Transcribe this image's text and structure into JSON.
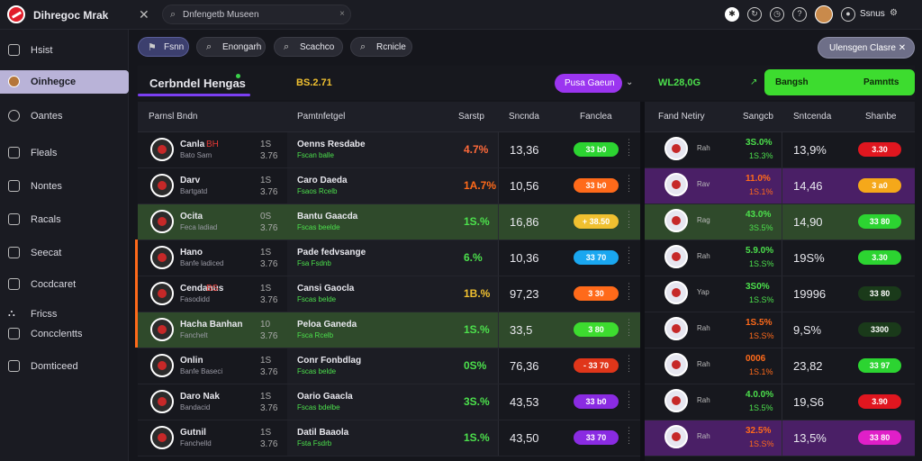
{
  "app": {
    "title": "Dihregoc Mrak"
  },
  "search": {
    "text": "Dnfengetb Museen",
    "clear": "×"
  },
  "user": {
    "name": "Ssnus"
  },
  "sidebar": {
    "items": [
      {
        "label": "Hsist"
      },
      {
        "label": "Oinhegce"
      },
      {
        "label": "Oantes"
      },
      {
        "label": "Fleals"
      },
      {
        "label": "Nontes"
      },
      {
        "label": "Racals"
      },
      {
        "label": "Seecat"
      },
      {
        "label": "Cocdcaret"
      },
      {
        "label": "Fricss"
      },
      {
        "label": "Concclentts"
      },
      {
        "label": "Domticeed"
      }
    ]
  },
  "chips": [
    {
      "label": "Fsnn"
    },
    {
      "label": "Enongarh"
    },
    {
      "label": "Scachco"
    },
    {
      "label": "Rcnicle"
    }
  ],
  "chip_right": {
    "label": "Ulensgen Clasre"
  },
  "header": {
    "title": "Cerbndel Hengas",
    "subtitle": "BS.2.71",
    "button": "Pusa Gaeun",
    "value": "WL28,0G",
    "cta_left": "Bangsh",
    "cta_right": "Pamntts"
  },
  "left_columns": [
    "Parnsl Bndn",
    "Pamtnfetgel",
    "Sarstp",
    "Sncnda",
    "Fanclea"
  ],
  "right_columns": [
    "Fand Netiry",
    "Sangcb",
    "Sntcenda",
    "Shanbe"
  ],
  "colors": {
    "accent": "#9b35f0",
    "green": "#3ddc2f",
    "orange": "#ff6a1a"
  },
  "rows": [
    {
      "team": "Canla",
      "tag": "BH",
      "sub": "Bato Sam",
      "n1": "1S",
      "n2": "3.76",
      "p1": "Oenns Resdabe",
      "p2": "Fscan balle",
      "pct": "4.7%",
      "pct_color": "#ff6a3a",
      "val": "13,36",
      "pill": "33 b0",
      "pill_color": "#2cd431",
      "r_tag": "Rah",
      "r_pct": "3S.0%",
      "r_pct2": "1S.3%",
      "r_pct_color": "#4ce04c",
      "r_val": "13,9%",
      "r_pill": "3.30",
      "r_pill_color": "#e0161f",
      "bg": "#17181e",
      "rbg": "#17181e"
    },
    {
      "team": "Darv",
      "tag": "",
      "sub": "Bartgatd",
      "n1": "1S",
      "n2": "3.76",
      "p1": "Caro Daeda",
      "p2": "Fsaos Rcelb",
      "pct": "1A.7%",
      "pct_color": "#ff6a1a",
      "val": "10,56",
      "pill": "33 b0",
      "pill_color": "#ff6a1a",
      "r_tag": "Rav",
      "r_pct": "11.0%",
      "r_pct2": "1S.1%",
      "r_pct_color": "#ff6a1a",
      "r_val": "14,46",
      "r_pill": "3 a0",
      "r_pill_color": "#f5a81a",
      "bg": "#17181e",
      "rbg": "#4a1f66"
    },
    {
      "team": "Ocita",
      "tag": "",
      "sub": "Feca ladiad",
      "n1": "0S",
      "n2": "3.76",
      "p1": "Bantu Gaacda",
      "p2": "Fscas beelde",
      "pct": "1S.%",
      "pct_color": "#4ce04c",
      "val": "16,86",
      "pill": "+ 38.50",
      "pill_color": "#f0c030",
      "r_tag": "Rag",
      "r_pct": "43.0%",
      "r_pct2": "3S.5%",
      "r_pct_color": "#4ce04c",
      "r_val": "14,90",
      "r_pill": "33 80",
      "r_pill_color": "#2cd431",
      "bg": "#2f4a2b",
      "rbg": "#2f4a2b"
    },
    {
      "team": "Hano",
      "tag": "",
      "sub": "Banfe ladiced",
      "n1": "1S",
      "n2": "3.76",
      "p1": "Pade fedvsange",
      "p2": "Fsa Fsdnb",
      "pct": "6.%",
      "pct_color": "#4ce04c",
      "val": "10,36",
      "pill": "33 70",
      "pill_color": "#1aa7f0",
      "r_tag": "Rah",
      "r_pct": "5.9.0%",
      "r_pct2": "1S.S%",
      "r_pct_color": "#4ce04c",
      "r_val": "19S%",
      "r_pill": "3.30",
      "r_pill_color": "#2cd431",
      "bg": "#17181e",
      "rbg": "#17181e"
    },
    {
      "team": "Cendanus",
      "tag": "BS",
      "sub": "Fasodidd",
      "n1": "1S",
      "n2": "3.76",
      "p1": "Cansi Gaocla",
      "p2": "Fscas belde",
      "pct": "1B.%",
      "pct_color": "#f0c030",
      "val": "97,23",
      "pill": "3 30",
      "pill_color": "#ff6a1a",
      "r_tag": "Yap",
      "r_pct": "3S0%",
      "r_pct2": "1S.S%",
      "r_pct_color": "#4ce04c",
      "r_val": "19996",
      "r_pill": "33 80",
      "r_pill_color": "#1a3a1a",
      "bg": "#17181e",
      "rbg": "#17181e"
    },
    {
      "team": "Hacha Banhan",
      "tag": "",
      "sub": "Fanchelt",
      "n1": "10",
      "n2": "3.76",
      "p1": "Peloa Ganeda",
      "p2": "Fsca Rcelb",
      "pct": "1S.%",
      "pct_color": "#4ce04c",
      "val": "33,5",
      "pill": "3 80",
      "pill_color": "#3ddc2f",
      "r_tag": "Rah",
      "r_pct": "1S.5%",
      "r_pct2": "1S.S%",
      "r_pct_color": "#ff6a1a",
      "r_val": "9,S%",
      "r_pill": "3300",
      "r_pill_color": "#1a3a1a",
      "bg": "#2f4a2b",
      "rbg": "#17181e"
    },
    {
      "team": "Onlin",
      "tag": "",
      "sub": "Banfe Baseci",
      "n1": "1S",
      "n2": "3.76",
      "p1": "Conr Fonbdlag",
      "p2": "Fscas belde",
      "pct": "0S%",
      "pct_color": "#4ce04c",
      "val": "76,36",
      "pill": "- 33 70",
      "pill_color": "#e0361a",
      "r_tag": "Rah",
      "r_pct": "0006",
      "r_pct2": "1S.1%",
      "r_pct_color": "#ff6a1a",
      "r_val": "23,82",
      "r_pill": "33 97",
      "r_pill_color": "#2cd431",
      "bg": "#17181e",
      "rbg": "#17181e"
    },
    {
      "team": "Daro Nak",
      "tag": "",
      "sub": "Bandacid",
      "n1": "1S",
      "n2": "3.76",
      "p1": "Oario Gaacla",
      "p2": "Fscas bdelbe",
      "pct": "3S.%",
      "pct_color": "#4ce04c",
      "val": "43,53",
      "pill": "33 b0",
      "pill_color": "#8a2be2",
      "r_tag": "Rah",
      "r_pct": "4.0.0%",
      "r_pct2": "1S.5%",
      "r_pct_color": "#4ce04c",
      "r_val": "19,S6",
      "r_pill": "3.90",
      "r_pill_color": "#e0161f",
      "bg": "#17181e",
      "rbg": "#17181e"
    },
    {
      "team": "Gutnil",
      "tag": "",
      "sub": "Fanchelld",
      "n1": "1S",
      "n2": "3.76",
      "p1": "Datil Baaola",
      "p2": "Fsta Fsdrb",
      "pct": "1S.%",
      "pct_color": "#4ce04c",
      "val": "43,50",
      "pill": "33 70",
      "pill_color": "#8a2be2",
      "r_tag": "Rah",
      "r_pct": "32.5%",
      "r_pct2": "1S.S%",
      "r_pct_color": "#ff6a1a",
      "r_val": "13,5%",
      "r_pill": "33 80",
      "r_pill_color": "#e01fc8",
      "bg": "#17181e",
      "rbg": "#4a1f66"
    }
  ]
}
